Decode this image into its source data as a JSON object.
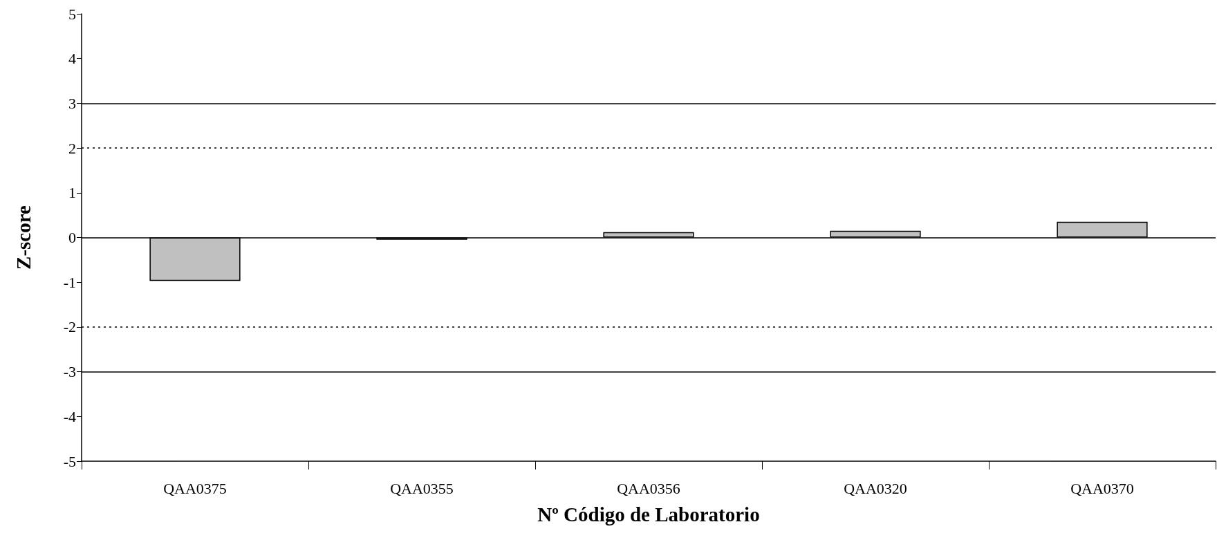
{
  "chart_data": {
    "type": "bar",
    "xlabel": "Nº Código de Laboratorio",
    "ylabel": "Z-score",
    "categories": [
      "QAA0375",
      "QAA0355",
      "QAA0356",
      "QAA0320",
      "QAA0370"
    ],
    "values": [
      -0.97,
      -0.05,
      0.12,
      0.15,
      0.35
    ],
    "color": "#c0c0c0",
    "ylim": [
      -5,
      5
    ],
    "yticks": [
      -5,
      -4,
      -3,
      -2,
      -1,
      0,
      1,
      2,
      3,
      4,
      5
    ],
    "grid": false,
    "ref_lines": [
      {
        "axis": "y",
        "value": 3,
        "color": "#000000",
        "line_style": "solid"
      },
      {
        "axis": "y",
        "value": 2,
        "color": "#000000",
        "line_style": "dotted"
      },
      {
        "axis": "y",
        "value": 0,
        "color": "#000000",
        "line_style": "solid"
      },
      {
        "axis": "y",
        "value": -2,
        "color": "#000000",
        "line_style": "dotted"
      },
      {
        "axis": "y",
        "value": -3,
        "color": "#000000",
        "line_style": "solid"
      }
    ]
  }
}
